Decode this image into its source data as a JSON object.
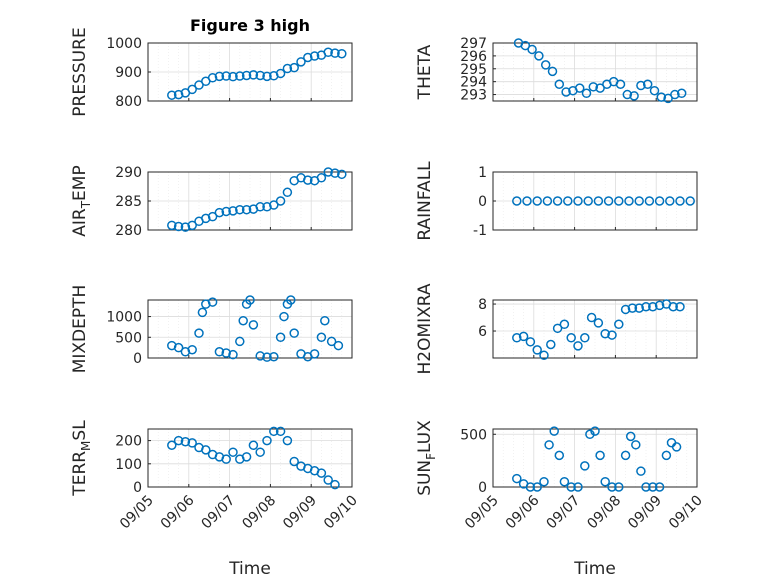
{
  "figure": {
    "title": "Figure 3 high",
    "xlabel": "Time",
    "date_ticks": [
      "09/05",
      "09/06",
      "09/07",
      "09/08",
      "09/09",
      "09/10"
    ]
  },
  "colors": {
    "marker": "#0072BD",
    "grid": "#dcdcdc",
    "axis": "#262626",
    "background": "#ffffff"
  },
  "chart_data": [
    {
      "type": "scatter",
      "ylabel": "PRESSURE",
      "ylim": [
        800,
        1000
      ],
      "yticks": [
        800,
        900,
        1000
      ],
      "grid": true,
      "marker": "open-circle",
      "points": [
        [
          "2024-09-05 14:00",
          820
        ],
        [
          "2024-09-05 18:00",
          822
        ],
        [
          "2024-09-05 22:00",
          828
        ],
        [
          "2024-09-06 02:00",
          840
        ],
        [
          "2024-09-06 06:00",
          855
        ],
        [
          "2024-09-06 10:00",
          868
        ],
        [
          "2024-09-06 14:00",
          880
        ],
        [
          "2024-09-06 18:00",
          885
        ],
        [
          "2024-09-06 22:00",
          886
        ],
        [
          "2024-09-07 02:00",
          884
        ],
        [
          "2024-09-07 06:00",
          886
        ],
        [
          "2024-09-07 10:00",
          888
        ],
        [
          "2024-09-07 14:00",
          890
        ],
        [
          "2024-09-07 18:00",
          888
        ],
        [
          "2024-09-07 22:00",
          885
        ],
        [
          "2024-09-08 02:00",
          887
        ],
        [
          "2024-09-08 06:00",
          895
        ],
        [
          "2024-09-08 10:00",
          912
        ],
        [
          "2024-09-08 14:00",
          915
        ],
        [
          "2024-09-08 18:00",
          935
        ],
        [
          "2024-09-08 22:00",
          950
        ],
        [
          "2024-09-09 02:00",
          955
        ],
        [
          "2024-09-09 06:00",
          958
        ],
        [
          "2024-09-09 10:00",
          968
        ],
        [
          "2024-09-09 14:00",
          965
        ],
        [
          "2024-09-09 18:00",
          963
        ]
      ]
    },
    {
      "type": "scatter",
      "ylabel": "THETA",
      "ylim": [
        292.5,
        297
      ],
      "yticks": [
        293,
        294,
        295,
        296,
        297
      ],
      "grid": true,
      "marker": "open-circle",
      "points": [
        [
          "2024-09-05 15:00",
          297
        ],
        [
          "2024-09-05 19:00",
          296.8
        ],
        [
          "2024-09-05 23:00",
          296.5
        ],
        [
          "2024-09-06 03:00",
          296
        ],
        [
          "2024-09-06 07:00",
          295.3
        ],
        [
          "2024-09-06 11:00",
          294.8
        ],
        [
          "2024-09-06 15:00",
          293.8
        ],
        [
          "2024-09-06 19:00",
          293.2
        ],
        [
          "2024-09-06 23:00",
          293.3
        ],
        [
          "2024-09-07 03:00",
          293.5
        ],
        [
          "2024-09-07 07:00",
          293.1
        ],
        [
          "2024-09-07 11:00",
          293.6
        ],
        [
          "2024-09-07 15:00",
          293.5
        ],
        [
          "2024-09-07 19:00",
          293.8
        ],
        [
          "2024-09-07 23:00",
          294
        ],
        [
          "2024-09-08 03:00",
          293.8
        ],
        [
          "2024-09-08 07:00",
          293
        ],
        [
          "2024-09-08 11:00",
          292.9
        ],
        [
          "2024-09-08 15:00",
          293.7
        ],
        [
          "2024-09-08 19:00",
          293.8
        ],
        [
          "2024-09-08 23:00",
          293.3
        ],
        [
          "2024-09-09 03:00",
          292.8
        ],
        [
          "2024-09-09 07:00",
          292.7
        ],
        [
          "2024-09-09 11:00",
          293
        ],
        [
          "2024-09-09 15:00",
          293.1
        ]
      ]
    },
    {
      "type": "scatter",
      "ylabel": "AIR",
      "ylabel_sub": "T",
      "ylabel_rest": "EMP",
      "ylim": [
        280,
        290
      ],
      "yticks": [
        280,
        285,
        290
      ],
      "grid": true,
      "marker": "open-circle",
      "points": [
        [
          "2024-09-05 14:00",
          280.8
        ],
        [
          "2024-09-05 18:00",
          280.6
        ],
        [
          "2024-09-05 22:00",
          280.5
        ],
        [
          "2024-09-06 02:00",
          280.8
        ],
        [
          "2024-09-06 06:00",
          281.5
        ],
        [
          "2024-09-06 10:00",
          282
        ],
        [
          "2024-09-06 14:00",
          282.3
        ],
        [
          "2024-09-06 18:00",
          283
        ],
        [
          "2024-09-06 22:00",
          283.2
        ],
        [
          "2024-09-07 02:00",
          283.3
        ],
        [
          "2024-09-07 06:00",
          283.5
        ],
        [
          "2024-09-07 10:00",
          283.5
        ],
        [
          "2024-09-07 14:00",
          283.6
        ],
        [
          "2024-09-07 18:00",
          284
        ],
        [
          "2024-09-07 22:00",
          284
        ],
        [
          "2024-09-08 02:00",
          284.3
        ],
        [
          "2024-09-08 06:00",
          285
        ],
        [
          "2024-09-08 10:00",
          286.5
        ],
        [
          "2024-09-08 14:00",
          288.5
        ],
        [
          "2024-09-08 18:00",
          289
        ],
        [
          "2024-09-08 22:00",
          288.6
        ],
        [
          "2024-09-09 02:00",
          288.5
        ],
        [
          "2024-09-09 06:00",
          289
        ],
        [
          "2024-09-09 10:00",
          290
        ],
        [
          "2024-09-09 14:00",
          289.8
        ],
        [
          "2024-09-09 18:00",
          289.6
        ]
      ]
    },
    {
      "type": "scatter",
      "ylabel": "RAINFALL",
      "ylim": [
        -1,
        1
      ],
      "yticks": [
        -1,
        0,
        1
      ],
      "grid": true,
      "marker": "open-circle",
      "points": [
        [
          "2024-09-05 14:00",
          0
        ],
        [
          "2024-09-05 20:00",
          0
        ],
        [
          "2024-09-06 02:00",
          0
        ],
        [
          "2024-09-06 08:00",
          0
        ],
        [
          "2024-09-06 14:00",
          0
        ],
        [
          "2024-09-06 20:00",
          0
        ],
        [
          "2024-09-07 02:00",
          0
        ],
        [
          "2024-09-07 08:00",
          0
        ],
        [
          "2024-09-07 14:00",
          0
        ],
        [
          "2024-09-07 20:00",
          0
        ],
        [
          "2024-09-08 02:00",
          0
        ],
        [
          "2024-09-08 08:00",
          0
        ],
        [
          "2024-09-08 14:00",
          0
        ],
        [
          "2024-09-08 20:00",
          0
        ],
        [
          "2024-09-09 02:00",
          0
        ],
        [
          "2024-09-09 08:00",
          0
        ],
        [
          "2024-09-09 14:00",
          0
        ],
        [
          "2024-09-09 20:00",
          0
        ]
      ]
    },
    {
      "type": "scatter",
      "ylabel": "MIXDEPTH",
      "ylim": [
        0,
        1400
      ],
      "yticks": [
        0,
        500,
        1000
      ],
      "grid": true,
      "marker": "open-circle",
      "points": [
        [
          "2024-09-05 14:00",
          300
        ],
        [
          "2024-09-05 18:00",
          250
        ],
        [
          "2024-09-05 22:00",
          150
        ],
        [
          "2024-09-06 02:00",
          200
        ],
        [
          "2024-09-06 06:00",
          600
        ],
        [
          "2024-09-06 08:00",
          1100
        ],
        [
          "2024-09-06 10:00",
          1300
        ],
        [
          "2024-09-06 14:00",
          1350
        ],
        [
          "2024-09-06 18:00",
          150
        ],
        [
          "2024-09-06 22:00",
          120
        ],
        [
          "2024-09-07 02:00",
          80
        ],
        [
          "2024-09-07 06:00",
          400
        ],
        [
          "2024-09-07 08:00",
          900
        ],
        [
          "2024-09-07 10:00",
          1300
        ],
        [
          "2024-09-07 12:00",
          1400
        ],
        [
          "2024-09-07 14:00",
          800
        ],
        [
          "2024-09-07 18:00",
          50
        ],
        [
          "2024-09-07 22:00",
          20
        ],
        [
          "2024-09-08 02:00",
          30
        ],
        [
          "2024-09-08 06:00",
          500
        ],
        [
          "2024-09-08 08:00",
          1000
        ],
        [
          "2024-09-08 10:00",
          1300
        ],
        [
          "2024-09-08 12:00",
          1400
        ],
        [
          "2024-09-08 14:00",
          600
        ],
        [
          "2024-09-08 18:00",
          100
        ],
        [
          "2024-09-08 22:00",
          30
        ],
        [
          "2024-09-09 02:00",
          100
        ],
        [
          "2024-09-09 06:00",
          500
        ],
        [
          "2024-09-09 08:00",
          900
        ],
        [
          "2024-09-09 12:00",
          400
        ],
        [
          "2024-09-09 16:00",
          300
        ]
      ]
    },
    {
      "type": "scatter",
      "ylabel": "H2OMIXRA",
      "ylim": [
        4,
        8.3
      ],
      "yticks": [
        6,
        8
      ],
      "grid": true,
      "marker": "open-circle",
      "points": [
        [
          "2024-09-05 14:00",
          5.5
        ],
        [
          "2024-09-05 18:00",
          5.6
        ],
        [
          "2024-09-05 22:00",
          5.2
        ],
        [
          "2024-09-06 02:00",
          4.6
        ],
        [
          "2024-09-06 06:00",
          4.2
        ],
        [
          "2024-09-06 10:00",
          5
        ],
        [
          "2024-09-06 14:00",
          6.2
        ],
        [
          "2024-09-06 18:00",
          6.5
        ],
        [
          "2024-09-06 22:00",
          5.5
        ],
        [
          "2024-09-07 02:00",
          4.9
        ],
        [
          "2024-09-07 06:00",
          5.5
        ],
        [
          "2024-09-07 10:00",
          7
        ],
        [
          "2024-09-07 14:00",
          6.6
        ],
        [
          "2024-09-07 18:00",
          5.8
        ],
        [
          "2024-09-07 22:00",
          5.7
        ],
        [
          "2024-09-08 02:00",
          6.5
        ],
        [
          "2024-09-08 06:00",
          7.6
        ],
        [
          "2024-09-08 10:00",
          7.7
        ],
        [
          "2024-09-08 14:00",
          7.7
        ],
        [
          "2024-09-08 18:00",
          7.8
        ],
        [
          "2024-09-08 22:00",
          7.8
        ],
        [
          "2024-09-09 02:00",
          7.9
        ],
        [
          "2024-09-09 06:00",
          8
        ],
        [
          "2024-09-09 10:00",
          7.8
        ],
        [
          "2024-09-09 14:00",
          7.8
        ]
      ]
    },
    {
      "type": "scatter",
      "ylabel": "TERR",
      "ylabel_sub": "M",
      "ylabel_rest": "SL",
      "ylim": [
        0,
        250
      ],
      "yticks": [
        0,
        100,
        200
      ],
      "grid": true,
      "marker": "open-circle",
      "points": [
        [
          "2024-09-05 14:00",
          180
        ],
        [
          "2024-09-05 18:00",
          200
        ],
        [
          "2024-09-05 22:00",
          195
        ],
        [
          "2024-09-06 02:00",
          190
        ],
        [
          "2024-09-06 06:00",
          170
        ],
        [
          "2024-09-06 10:00",
          160
        ],
        [
          "2024-09-06 14:00",
          140
        ],
        [
          "2024-09-06 18:00",
          130
        ],
        [
          "2024-09-06 22:00",
          120
        ],
        [
          "2024-09-07 02:00",
          150
        ],
        [
          "2024-09-07 06:00",
          120
        ],
        [
          "2024-09-07 10:00",
          130
        ],
        [
          "2024-09-07 14:00",
          180
        ],
        [
          "2024-09-07 18:00",
          150
        ],
        [
          "2024-09-07 22:00",
          200
        ],
        [
          "2024-09-08 02:00",
          240
        ],
        [
          "2024-09-08 06:00",
          240
        ],
        [
          "2024-09-08 10:00",
          200
        ],
        [
          "2024-09-08 14:00",
          110
        ],
        [
          "2024-09-08 18:00",
          90
        ],
        [
          "2024-09-08 22:00",
          80
        ],
        [
          "2024-09-09 02:00",
          70
        ],
        [
          "2024-09-09 06:00",
          60
        ],
        [
          "2024-09-09 10:00",
          30
        ],
        [
          "2024-09-09 14:00",
          10
        ]
      ]
    },
    {
      "type": "scatter",
      "ylabel": "SUN",
      "ylabel_sub": "F",
      "ylabel_rest": "LUX",
      "ylim": [
        0,
        550
      ],
      "yticks": [
        0,
        500
      ],
      "grid": true,
      "marker": "open-circle",
      "points": [
        [
          "2024-09-05 14:00",
          80
        ],
        [
          "2024-09-05 18:00",
          30
        ],
        [
          "2024-09-05 22:00",
          0
        ],
        [
          "2024-09-06 02:00",
          0
        ],
        [
          "2024-09-06 06:00",
          50
        ],
        [
          "2024-09-06 09:00",
          400
        ],
        [
          "2024-09-06 12:00",
          530
        ],
        [
          "2024-09-06 15:00",
          300
        ],
        [
          "2024-09-06 18:00",
          50
        ],
        [
          "2024-09-06 22:00",
          0
        ],
        [
          "2024-09-07 02:00",
          0
        ],
        [
          "2024-09-07 06:00",
          200
        ],
        [
          "2024-09-07 09:00",
          500
        ],
        [
          "2024-09-07 12:00",
          530
        ],
        [
          "2024-09-07 15:00",
          300
        ],
        [
          "2024-09-07 18:00",
          50
        ],
        [
          "2024-09-07 22:00",
          0
        ],
        [
          "2024-09-08 02:00",
          0
        ],
        [
          "2024-09-08 06:00",
          300
        ],
        [
          "2024-09-08 09:00",
          480
        ],
        [
          "2024-09-08 12:00",
          400
        ],
        [
          "2024-09-08 15:00",
          150
        ],
        [
          "2024-09-08 18:00",
          0
        ],
        [
          "2024-09-08 22:00",
          0
        ],
        [
          "2024-09-09 02:00",
          0
        ],
        [
          "2024-09-09 06:00",
          300
        ],
        [
          "2024-09-09 09:00",
          420
        ],
        [
          "2024-09-09 12:00",
          380
        ]
      ]
    }
  ]
}
